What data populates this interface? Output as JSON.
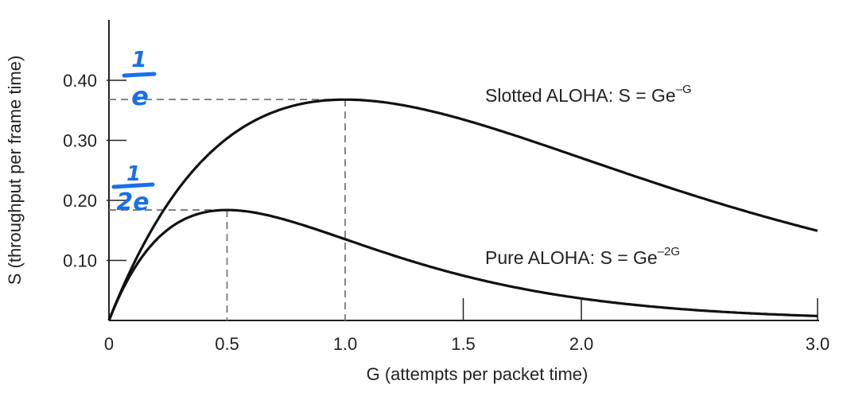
{
  "chart_data": {
    "type": "line",
    "xlabel": "G (attempts per packet time)",
    "ylabel": "S (throughput per frame time)",
    "xlim": [
      0,
      3.0
    ],
    "ylim": [
      0,
      0.5
    ],
    "x_ticks": [
      "0",
      "0.5",
      "1.0",
      "1.5",
      "2.0",
      "3.0"
    ],
    "x_tick_values": [
      0,
      0.5,
      1.0,
      1.5,
      2.0,
      3.0
    ],
    "y_ticks": [
      "0.10",
      "0.20",
      "0.30",
      "0.40"
    ],
    "y_tick_values": [
      0.1,
      0.2,
      0.3,
      0.4
    ],
    "grid": false,
    "series": [
      {
        "name": "Slotted ALOHA",
        "label_text": "Slotted ALOHA: S = Ge",
        "label_exp": "–G",
        "formula_k": 1,
        "peak": {
          "x": 1.0,
          "y": 0.368
        }
      },
      {
        "name": "Pure ALOHA",
        "label_text": "Pure ALOHA: S = Ge",
        "label_exp": "–2G",
        "formula_k": 2,
        "peak": {
          "x": 0.5,
          "y": 0.184
        }
      }
    ],
    "annotations": [
      {
        "num": "1",
        "den": "e",
        "value": 0.368,
        "color": "#1a6fe8"
      },
      {
        "num": "1",
        "den": "2e",
        "value": 0.184,
        "color": "#1a6fe8"
      }
    ],
    "line_color": "#111111",
    "dash_color": "#777777"
  }
}
